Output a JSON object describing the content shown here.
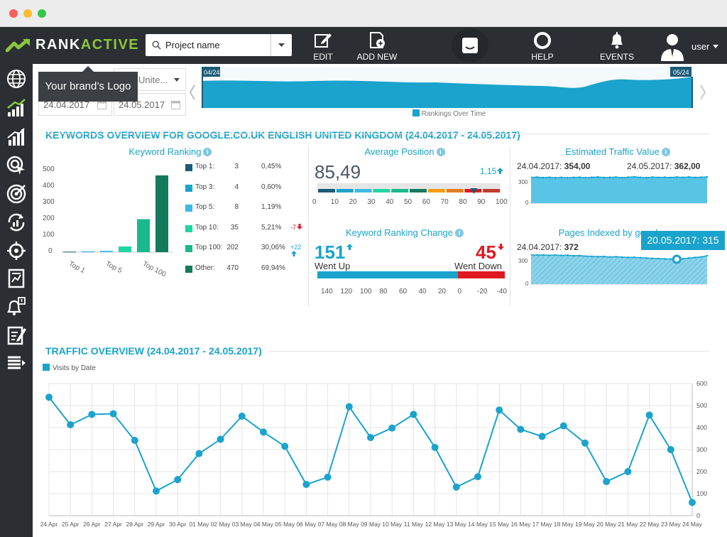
{
  "app": {
    "brand_prefix": "RANK",
    "brand_suffix": "ACTIVE",
    "logo_tooltip": "Your brand’s Logo",
    "user_name": "user"
  },
  "search": {
    "value": "Project name"
  },
  "nav": {
    "edit": "EDIT",
    "add_new": "ADD NEW",
    "help": "HELP",
    "events": "EVENTS"
  },
  "filters": {
    "region": "Unite...",
    "date_from": "24.04.2017",
    "date_to": "24.05.2017"
  },
  "timeline": {
    "start_label": "04/24",
    "end_label": "05/24",
    "legend": "Rankings Over Time"
  },
  "overview": {
    "title": "KEYWORDS OVERVIEW FOR GOOGLE.CO.UK ENGLISH UNITED KINGDOM (24.04.2017 - 24.05.2017)",
    "keyword_ranking": {
      "title": "Keyword Ranking",
      "y_ticks": [
        "500",
        "400",
        "300",
        "200",
        "100",
        "0"
      ],
      "x_ticks": [
        "Top 1",
        "Top 5",
        "Top 100"
      ],
      "rows": [
        {
          "label": "Top 1:",
          "count": "3",
          "pct": "0,45%",
          "change": "",
          "color": "#1b5b78"
        },
        {
          "label": "Top 3:",
          "count": "4",
          "pct": "0,60%",
          "change": "",
          "color": "#1aa3cc"
        },
        {
          "label": "Top 5:",
          "count": "8",
          "pct": "1,19%",
          "change": "",
          "color": "#3db9e6"
        },
        {
          "label": "Top 10:",
          "count": "35",
          "pct": "5,21%",
          "change": "-7",
          "color": "#21d4a4"
        },
        {
          "label": "Top 100:",
          "count": "202",
          "pct": "30,06%",
          "change": "+22",
          "color": "#19b98b"
        },
        {
          "label": "Other:",
          "count": "470",
          "pct": "69,94%",
          "change": "",
          "color": "#137a5c"
        }
      ]
    },
    "average_position": {
      "title": "Average Position",
      "value": "85,49",
      "change": "1,15",
      "scale": [
        "0",
        "10",
        "20",
        "30",
        "40",
        "50",
        "60",
        "70",
        "80",
        "90",
        "100"
      ]
    },
    "ranking_change": {
      "title": "Keyword Ranking Change",
      "up_value": "151",
      "up_label": "Went Up",
      "down_value": "45",
      "down_label": "Went Down",
      "scale": [
        "140",
        "120",
        "100",
        "80",
        "60",
        "40",
        "20",
        "0",
        "-20",
        "-40"
      ]
    },
    "traffic_value": {
      "title": "Estimated Traffic Value",
      "from_date": "24.04.2017:",
      "from_value": "354,00",
      "to_date": "24.05.2017:",
      "to_value": "362,00",
      "y_ticks": [
        "300",
        "0"
      ]
    },
    "pages_indexed": {
      "title": "Pages Indexed by google",
      "from_date": "24.04.2017:",
      "from_value": "372",
      "tooltip": "20.05.2017: 315",
      "y_ticks": [
        "300",
        "0"
      ]
    }
  },
  "traffic": {
    "title": "TRAFFIC OVERVIEW (24.04.2017 - 24.05.2017)",
    "legend": "Visits by Date"
  },
  "chart_data": {
    "type": "line",
    "title": "",
    "series": [
      {
        "name": "Visits by Date",
        "values": [
          538,
          413,
          460,
          463,
          342,
          112,
          164,
          282,
          347,
          452,
          380,
          315,
          142,
          175,
          495,
          355,
          398,
          460,
          310,
          130,
          177,
          480,
          392,
          360,
          408,
          330,
          155,
          200,
          457,
          300,
          60
        ]
      }
    ],
    "x": [
      "24 Apr",
      "25 Apr",
      "26 Apr",
      "27 Apr",
      "28 Apr",
      "29 Apr",
      "30 Apr",
      "01 May",
      "02 May",
      "03 May",
      "04 May",
      "05 May",
      "06 May",
      "07 May",
      "08 May",
      "09 May",
      "10 May",
      "11 May",
      "12 May",
      "13 May",
      "14 May",
      "15 May",
      "16 May",
      "17 May",
      "18 May",
      "19 May",
      "20 May",
      "21 May",
      "22 May",
      "23 May",
      "24 May"
    ],
    "ylim": [
      0,
      600
    ],
    "y_ticks": [
      "600",
      "500",
      "400",
      "300",
      "200",
      "100",
      "0"
    ],
    "grid": true,
    "legend": "top-left"
  },
  "colors": {
    "accent": "#1aa3cc",
    "dark": "#2b2e33",
    "red": "#e0181f",
    "brand_green": "#8cc63e"
  }
}
